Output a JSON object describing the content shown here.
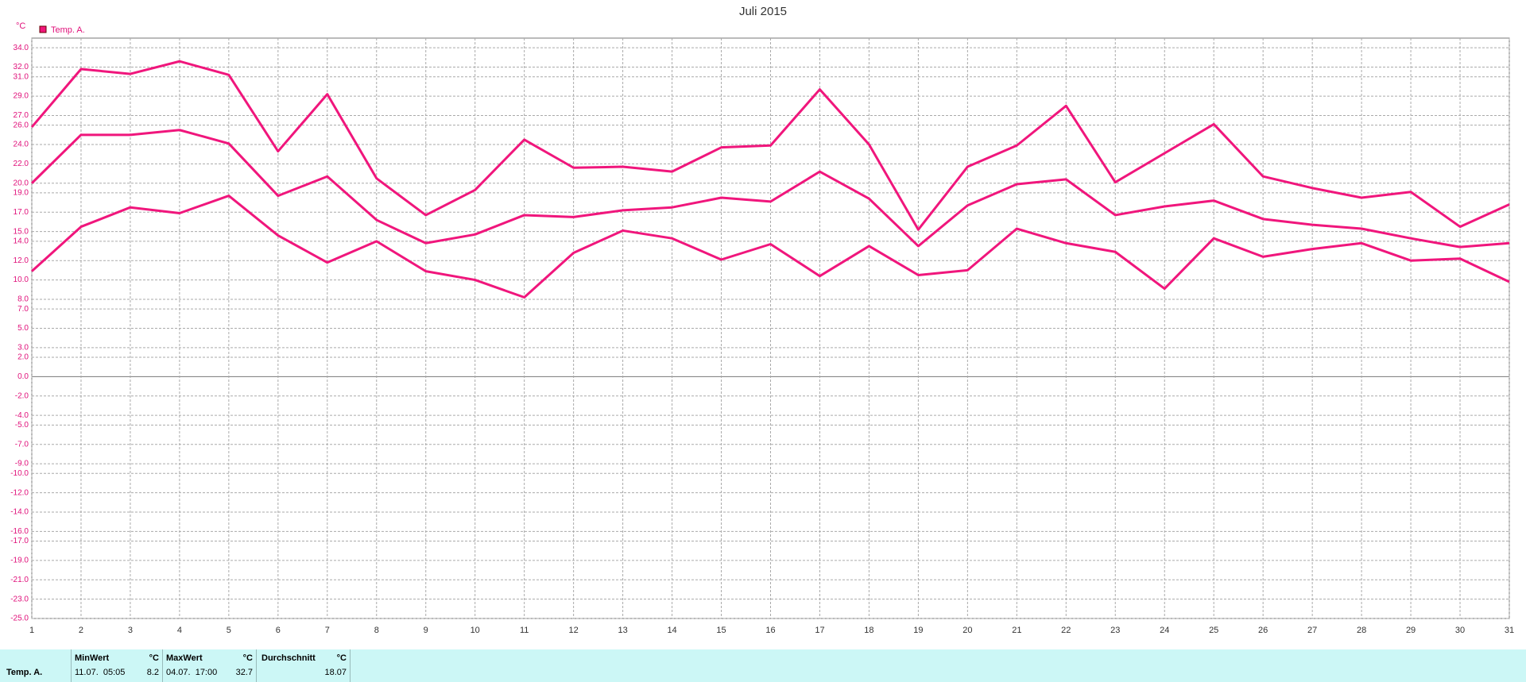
{
  "chart_data": {
    "type": "line",
    "title": "Juli 2015",
    "y_unit": "°C",
    "legend": "Temp. A.",
    "x": [
      1,
      2,
      3,
      4,
      5,
      6,
      7,
      8,
      9,
      10,
      11,
      12,
      13,
      14,
      15,
      16,
      17,
      18,
      19,
      20,
      21,
      22,
      23,
      24,
      25,
      26,
      27,
      28,
      29,
      30,
      31
    ],
    "xlim": [
      1,
      31
    ],
    "xticks": [
      1,
      2,
      3,
      4,
      5,
      6,
      7,
      8,
      9,
      10,
      11,
      12,
      13,
      14,
      15,
      16,
      17,
      18,
      19,
      20,
      21,
      22,
      23,
      24,
      25,
      26,
      27,
      28,
      29,
      30,
      31
    ],
    "ylim": [
      -25,
      35
    ],
    "yticks": [
      {
        "value": 34,
        "label": "34.0"
      },
      {
        "value": 32,
        "label": "32.0"
      },
      {
        "value": 31,
        "label": "31.0"
      },
      {
        "value": 29,
        "label": "29.0"
      },
      {
        "value": 27,
        "label": "27.0"
      },
      {
        "value": 26,
        "label": "26.0"
      },
      {
        "value": 24,
        "label": "24.0"
      },
      {
        "value": 22,
        "label": "22.0"
      },
      {
        "value": 20,
        "label": "20.0"
      },
      {
        "value": 19,
        "label": "19.0"
      },
      {
        "value": 17,
        "label": "17.0"
      },
      {
        "value": 15,
        "label": "15.0"
      },
      {
        "value": 14,
        "label": "14.0"
      },
      {
        "value": 12,
        "label": "12.0"
      },
      {
        "value": 10,
        "label": "10.0"
      },
      {
        "value": 8,
        "label": "8.0"
      },
      {
        "value": 7,
        "label": "7.0"
      },
      {
        "value": 5,
        "label": "5.0"
      },
      {
        "value": 3,
        "label": "3.0"
      },
      {
        "value": 2,
        "label": "2.0"
      },
      {
        "value": 0,
        "label": "0.0"
      },
      {
        "value": -2,
        "label": "-2.0"
      },
      {
        "value": -4,
        "label": "-4.0"
      },
      {
        "value": -5,
        "label": "-5.0"
      },
      {
        "value": -7,
        "label": "-7.0"
      },
      {
        "value": -9,
        "label": "-9.0"
      },
      {
        "value": -10,
        "label": "-10.0"
      },
      {
        "value": -12,
        "label": "-12.0"
      },
      {
        "value": -14,
        "label": "-14.0"
      },
      {
        "value": -16,
        "label": "-16.0"
      },
      {
        "value": -17,
        "label": "-17.0"
      },
      {
        "value": -19,
        "label": "-19.0"
      },
      {
        "value": -21,
        "label": "-21.0"
      },
      {
        "value": -23,
        "label": "-23.0"
      },
      {
        "value": -25,
        "label": "-25.0"
      }
    ],
    "grid": true,
    "color": "#f0167c",
    "series": [
      {
        "color": "#f0167c",
        "values": [
          25.8,
          31.8,
          31.3,
          32.6,
          31.2,
          23.3,
          29.2,
          20.5,
          16.7,
          19.3,
          24.5,
          21.6,
          21.7,
          21.2,
          23.7,
          23.9,
          29.7,
          24.0,
          15.2,
          21.7,
          23.9,
          28.0,
          20.1,
          23.1,
          26.1,
          20.7,
          19.5,
          18.5,
          19.1,
          15.5,
          17.8
        ]
      },
      {
        "color": "#f0167c",
        "values": [
          20.0,
          25.0,
          25.0,
          25.5,
          24.1,
          18.7,
          20.7,
          16.2,
          13.8,
          14.7,
          16.7,
          16.5,
          17.2,
          17.5,
          18.5,
          18.1,
          21.2,
          18.4,
          13.5,
          17.7,
          19.9,
          20.4,
          16.7,
          17.6,
          18.2,
          16.3,
          15.7,
          15.3,
          14.3,
          13.4,
          13.8
        ]
      },
      {
        "color": "#f0167c",
        "values": [
          10.9,
          15.5,
          17.5,
          16.9,
          18.7,
          14.6,
          11.8,
          14.0,
          10.9,
          10.0,
          8.2,
          12.8,
          15.1,
          14.3,
          12.1,
          13.7,
          10.4,
          13.5,
          10.5,
          11.0,
          15.3,
          13.8,
          12.9,
          9.1,
          14.3,
          12.4,
          13.2,
          13.8,
          12.0,
          12.2,
          9.8
        ]
      }
    ]
  },
  "summary": {
    "row_label": "Temp. A.",
    "min": {
      "header": "MinWert",
      "unit": "°C",
      "time": "11.07.  05:05",
      "value": "8.2"
    },
    "max": {
      "header": "MaxWert",
      "unit": "°C",
      "time": "04.07.  17:00",
      "value": "32.7"
    },
    "avg": {
      "header": "Durchschnitt",
      "unit": "°C",
      "value": "18.07"
    }
  }
}
